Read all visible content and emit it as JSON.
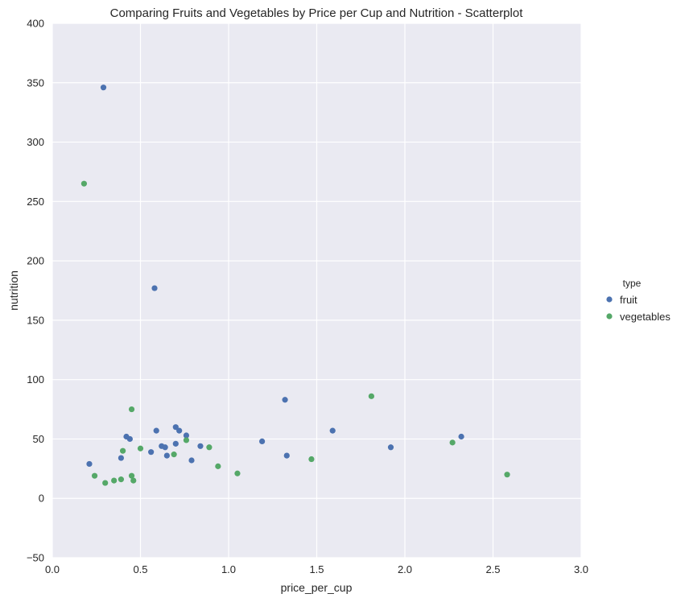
{
  "chart_data": {
    "type": "scatter",
    "title": "Comparing Fruits and Vegetables by Price per Cup and Nutrition - Scatterplot",
    "xlabel": "price_per_cup",
    "ylabel": "nutrition",
    "xlim": [
      0.0,
      3.0
    ],
    "ylim": [
      -50,
      400
    ],
    "xticks": [
      "0.0",
      "0.5",
      "1.0",
      "1.5",
      "2.0",
      "2.5",
      "3.0"
    ],
    "yticks": [
      "−50",
      "0",
      "50",
      "100",
      "150",
      "200",
      "250",
      "300",
      "350",
      "400"
    ],
    "grid": true,
    "legend": {
      "title": "type",
      "placement": "right",
      "entries": [
        "fruit",
        "vegetables"
      ]
    },
    "series": [
      {
        "name": "fruit",
        "color": "#4c72b0",
        "points": [
          [
            0.29,
            346
          ],
          [
            0.58,
            177
          ],
          [
            0.21,
            29
          ],
          [
            0.39,
            34
          ],
          [
            0.42,
            52
          ],
          [
            0.44,
            50
          ],
          [
            0.56,
            39
          ],
          [
            0.59,
            57
          ],
          [
            0.62,
            44
          ],
          [
            0.64,
            43
          ],
          [
            0.65,
            36
          ],
          [
            0.7,
            60
          ],
          [
            0.7,
            46
          ],
          [
            0.72,
            57
          ],
          [
            0.76,
            53
          ],
          [
            0.79,
            32
          ],
          [
            0.84,
            44
          ],
          [
            1.19,
            48
          ],
          [
            1.32,
            83
          ],
          [
            1.33,
            36
          ],
          [
            1.59,
            57
          ],
          [
            1.92,
            43
          ],
          [
            2.32,
            52
          ]
        ]
      },
      {
        "name": "vegetables",
        "color": "#55a868",
        "points": [
          [
            0.18,
            265
          ],
          [
            0.24,
            19
          ],
          [
            0.3,
            13
          ],
          [
            0.35,
            15
          ],
          [
            0.39,
            16
          ],
          [
            0.4,
            40
          ],
          [
            0.45,
            75
          ],
          [
            0.45,
            19
          ],
          [
            0.46,
            15
          ],
          [
            0.5,
            42
          ],
          [
            0.69,
            37
          ],
          [
            0.76,
            49
          ],
          [
            0.89,
            43
          ],
          [
            0.94,
            27
          ],
          [
            1.05,
            21
          ],
          [
            1.47,
            33
          ],
          [
            1.81,
            86
          ],
          [
            2.27,
            47
          ],
          [
            2.58,
            20
          ]
        ]
      }
    ]
  }
}
